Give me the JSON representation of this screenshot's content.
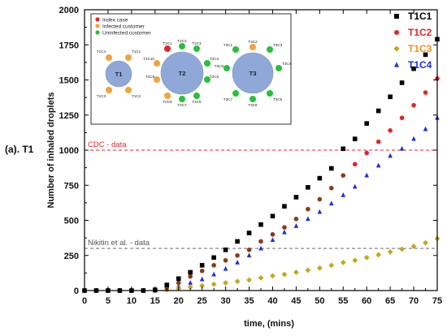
{
  "chart_data": {
    "type": "scatter",
    "panel_label": "(a). T1",
    "xlabel": "time, (mins)",
    "ylabel": "Number of inhaled droplets",
    "xlim": [
      0,
      75
    ],
    "ylim": [
      0,
      2000
    ],
    "x_ticks": [
      0,
      5,
      10,
      15,
      20,
      25,
      30,
      35,
      40,
      45,
      50,
      55,
      60,
      65,
      70,
      75
    ],
    "y_ticks": [
      0,
      250,
      500,
      750,
      1000,
      1250,
      1500,
      1750,
      2000
    ],
    "reference_lines": [
      {
        "label": "CDC - data",
        "y": 1000,
        "color": "#e0262b"
      },
      {
        "label": "Nikitin et al. - data",
        "y": 300,
        "color": "#555555"
      }
    ],
    "legend": {
      "placement": "top-right",
      "entries": [
        "T1C1",
        "T1C2",
        "T1C3",
        "T1C4"
      ]
    },
    "series": [
      {
        "name": "T1C1",
        "marker": "square",
        "color": "#000000",
        "label_color": "#000000",
        "x": [
          0,
          2.5,
          5,
          7.5,
          10,
          12.5,
          15,
          17.5,
          20,
          22.5,
          25,
          27.5,
          30,
          32.5,
          35,
          37.5,
          40,
          42.5,
          45,
          47.5,
          50,
          52.5,
          55,
          57.5,
          60,
          62.5,
          65,
          67.5,
          70,
          72.5,
          75
        ],
        "y": [
          0,
          0,
          0,
          0,
          0,
          0,
          5,
          40,
          85,
          130,
          180,
          235,
          290,
          350,
          410,
          470,
          530,
          600,
          665,
          735,
          800,
          870,
          1010,
          1080,
          1190,
          1280,
          1380,
          1480,
          1580,
          1680,
          1790
        ]
      },
      {
        "name": "T1C2",
        "marker": "circle",
        "color": "#e0262b",
        "label_color": "#e0262b",
        "x": [
          0,
          2.5,
          5,
          7.5,
          10,
          12.5,
          15,
          17.5,
          20,
          22.5,
          25,
          27.5,
          30,
          32.5,
          35,
          37.5,
          40,
          42.5,
          45,
          47.5,
          50,
          52.5,
          55,
          57.5,
          60,
          62.5,
          65,
          67.5,
          70,
          72.5,
          75
        ],
        "y": [
          0,
          0,
          0,
          0,
          0,
          0,
          2,
          20,
          55,
          100,
          140,
          180,
          215,
          250,
          290,
          350,
          400,
          450,
          510,
          580,
          650,
          730,
          820,
          900,
          980,
          1060,
          1140,
          1230,
          1320,
          1410,
          1510
        ]
      },
      {
        "name": "T1C3",
        "marker": "diamond",
        "color": "#c4a81c",
        "label_color": "#f2921e",
        "x": [
          0,
          2.5,
          5,
          7.5,
          10,
          12.5,
          15,
          17.5,
          20,
          22.5,
          25,
          27.5,
          30,
          32.5,
          35,
          37.5,
          40,
          42.5,
          45,
          47.5,
          50,
          52.5,
          55,
          57.5,
          60,
          62.5,
          65,
          67.5,
          70,
          72.5,
          75
        ],
        "y": [
          0,
          0,
          0,
          0,
          0,
          0,
          0,
          5,
          15,
          25,
          35,
          45,
          55,
          65,
          75,
          90,
          105,
          115,
          130,
          145,
          160,
          180,
          200,
          215,
          235,
          255,
          275,
          295,
          315,
          340,
          370
        ]
      },
      {
        "name": "T1C4",
        "marker": "triangle",
        "color": "#1e2fd6",
        "label_color": "#1e2fd6",
        "x": [
          0,
          2.5,
          5,
          7.5,
          10,
          12.5,
          15,
          17.5,
          20,
          22.5,
          25,
          27.5,
          30,
          32.5,
          35,
          37.5,
          40,
          42.5,
          45,
          47.5,
          50,
          52.5,
          55,
          57.5,
          60,
          62.5,
          65,
          67.5,
          70,
          72.5,
          75
        ],
        "y": [
          0,
          0,
          0,
          0,
          0,
          0,
          0,
          10,
          30,
          55,
          80,
          115,
          155,
          200,
          250,
          300,
          360,
          415,
          460,
          510,
          560,
          620,
          680,
          740,
          820,
          890,
          960,
          1010,
          1080,
          1150,
          1230
        ]
      }
    ],
    "inset": {
      "legend": [
        {
          "label": "Index case",
          "color": "#e0262b"
        },
        {
          "label": "Infected customer",
          "color": "#f2a33a"
        },
        {
          "label": "Uninfected customer",
          "color": "#27c13a"
        }
      ],
      "tables": [
        {
          "name": "T1",
          "seats": [
            {
              "label": "T1C4",
              "status": "infected"
            },
            {
              "label": "T1C1",
              "status": "infected"
            },
            {
              "label": "T1C3",
              "status": "infected"
            },
            {
              "label": "T1C2",
              "status": "infected"
            }
          ]
        },
        {
          "name": "T2",
          "seats": [
            {
              "label": "T2C1",
              "status": "index"
            },
            {
              "label": "T2C2",
              "status": "uninfected"
            },
            {
              "label": "T2C3",
              "status": "uninfected"
            },
            {
              "label": "T2C10",
              "status": "infected"
            },
            {
              "label": "T2C4",
              "status": "uninfected"
            },
            {
              "label": "T2C9",
              "status": "infected"
            },
            {
              "label": "T2C5",
              "status": "uninfected"
            },
            {
              "label": "T2C8",
              "status": "infected"
            },
            {
              "label": "T2C7",
              "status": "uninfected"
            },
            {
              "label": "T2C6",
              "status": "uninfected"
            }
          ]
        },
        {
          "name": "T3",
          "seats": [
            {
              "label": "T3C1",
              "status": "uninfected"
            },
            {
              "label": "T3C2",
              "status": "infected"
            },
            {
              "label": "T3C8",
              "status": "uninfected"
            },
            {
              "label": "T3C4",
              "status": "uninfected"
            },
            {
              "label": "T3C7",
              "status": "uninfected"
            },
            {
              "label": "T3C5",
              "status": "uninfected"
            },
            {
              "label": "T3C6",
              "status": "uninfected"
            },
            {
              "label": "T3C3",
              "status": "uninfected"
            }
          ]
        }
      ]
    }
  }
}
